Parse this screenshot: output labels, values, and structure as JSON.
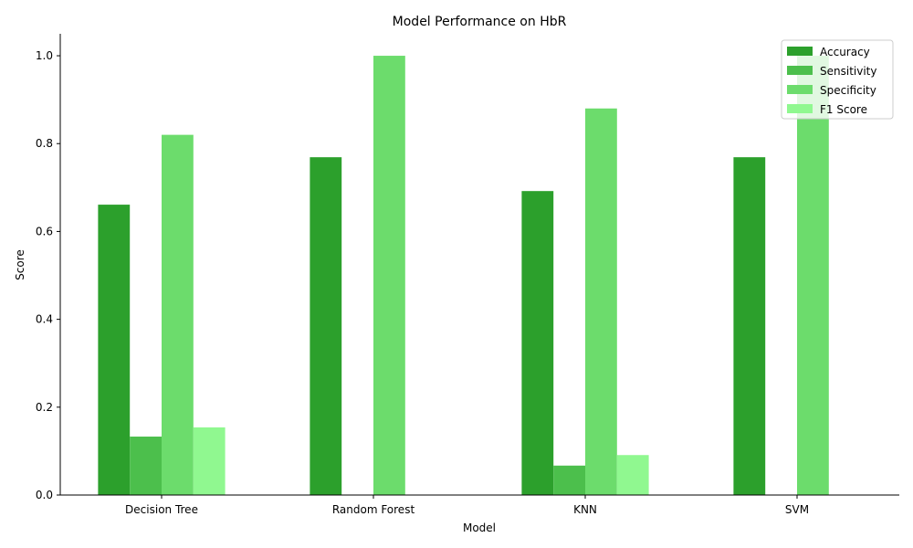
{
  "chart_data": {
    "type": "bar",
    "title": "Model Performance on HbR",
    "xlabel": "Model",
    "ylabel": "Score",
    "categories": [
      "Decision Tree",
      "Random Forest",
      "KNN",
      "SVM"
    ],
    "series": [
      {
        "name": "Accuracy",
        "color": "#2ca02c",
        "values": [
          0.661,
          0.769,
          0.692,
          0.769
        ]
      },
      {
        "name": "Sensitivity",
        "color": "#4cbf4c",
        "values": [
          0.133,
          0.0,
          0.067,
          0.0
        ]
      },
      {
        "name": "Specificity",
        "color": "#6cdc6c",
        "values": [
          0.82,
          1.0,
          0.88,
          1.0
        ]
      },
      {
        "name": "F1 Score",
        "color": "#90f890",
        "values": [
          0.154,
          0.0,
          0.091,
          0.0
        ]
      }
    ],
    "ylim": [
      0,
      1.05
    ],
    "yticks": [
      0.0,
      0.2,
      0.4,
      0.6,
      0.8,
      1.0
    ],
    "ytick_labels": [
      "0.0",
      "0.2",
      "0.4",
      "0.6",
      "0.8",
      "1.0"
    ],
    "grid": false,
    "legend_position": "top-right"
  }
}
